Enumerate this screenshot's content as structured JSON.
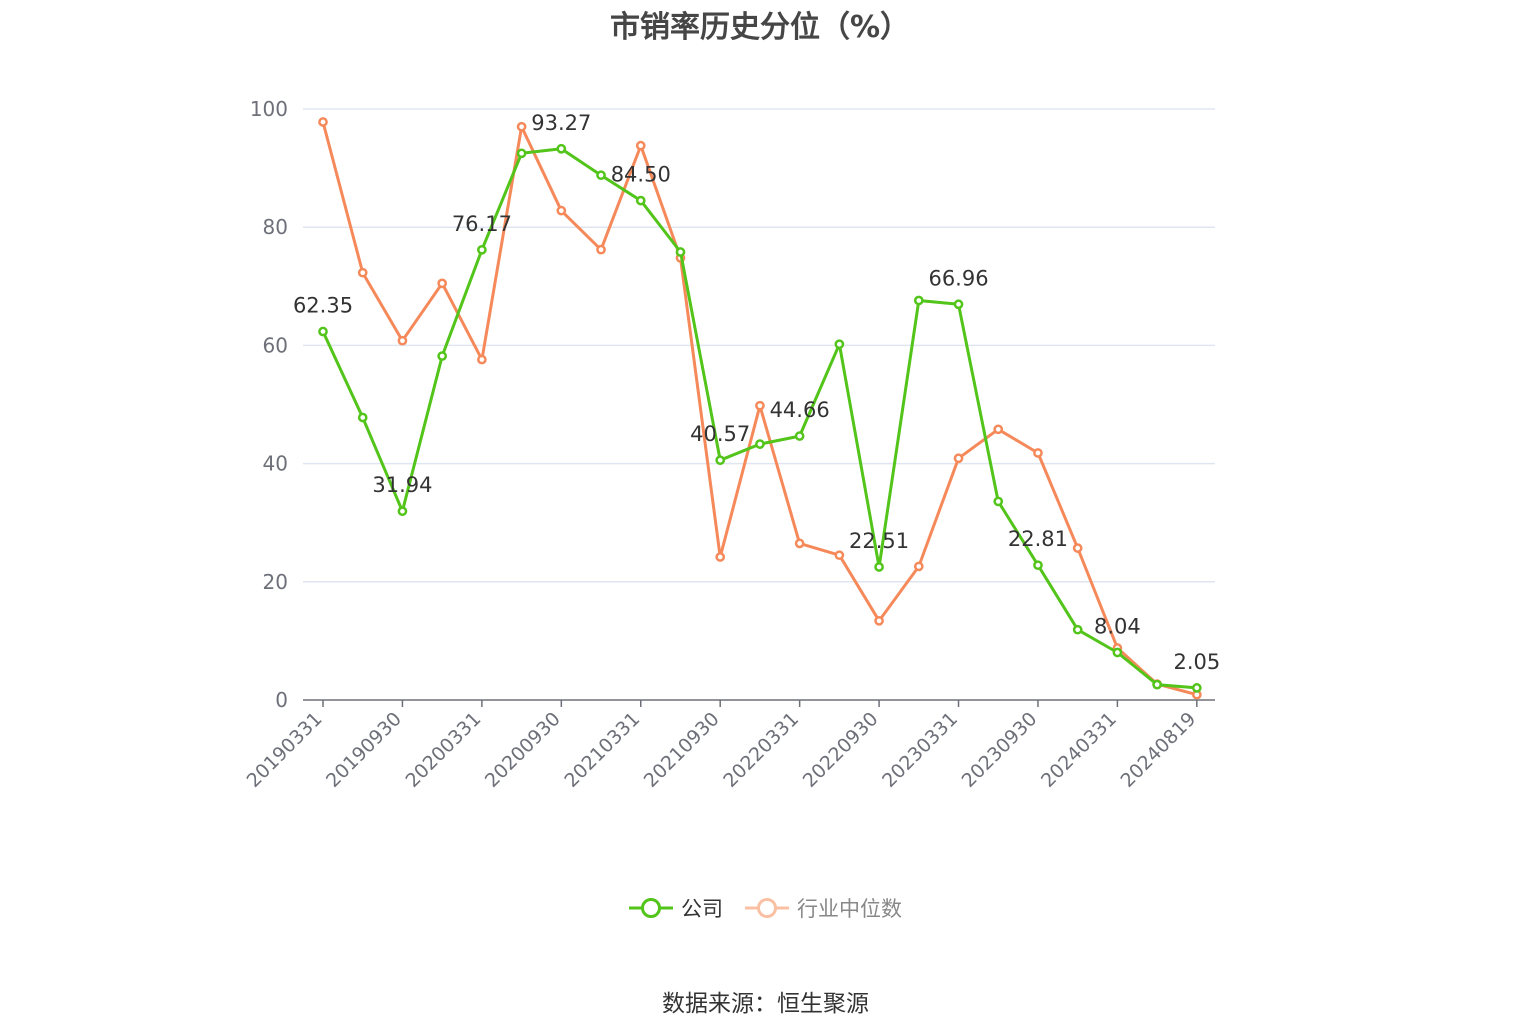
{
  "chart_data": {
    "type": "line",
    "title": "市销率历史分位（%）",
    "source": "数据来源：恒生聚源",
    "ylim": [
      0,
      100
    ],
    "yticks": [
      0,
      20,
      40,
      60,
      80,
      100
    ],
    "grid": true,
    "legend_position": "bottom-center",
    "x": [
      "20190331",
      "20190630",
      "20190930",
      "20191231",
      "20200331",
      "20200630",
      "20200930",
      "20201231",
      "20210331",
      "20210630",
      "20210930",
      "20211231",
      "20220331",
      "20220630",
      "20220930",
      "20221231",
      "20230331",
      "20230630",
      "20230930",
      "20231231",
      "20240331",
      "20240630",
      "20240819"
    ],
    "x_tick_labels": [
      "20190331",
      "20190930",
      "20200331",
      "20200930",
      "20210331",
      "20210930",
      "20220331",
      "20220930",
      "20230331",
      "20230930",
      "20240331",
      "20240819"
    ],
    "series": [
      {
        "name": "公司",
        "color": "#52c41a",
        "values": [
          62.35,
          47.8,
          31.94,
          58.2,
          76.17,
          92.5,
          93.27,
          88.8,
          84.5,
          75.8,
          40.57,
          43.3,
          44.66,
          60.2,
          22.51,
          67.6,
          66.96,
          33.6,
          22.81,
          11.9,
          8.04,
          2.6,
          2.05
        ],
        "labels": [
          "62.35",
          "",
          "31.94",
          "",
          "76.17",
          "",
          "93.27",
          "",
          "84.50",
          "",
          "40.57",
          "",
          "44.66",
          "",
          "22.51",
          "",
          "66.96",
          "",
          "22.81",
          "",
          "8.04",
          "",
          "2.05"
        ]
      },
      {
        "name": "行业中位数",
        "color": "#f5895a",
        "legend_color": "#f9c0a3",
        "values": [
          97.8,
          72.3,
          60.8,
          70.5,
          57.6,
          97.0,
          82.8,
          76.2,
          93.8,
          74.8,
          24.2,
          49.8,
          26.5,
          24.5,
          13.4,
          22.6,
          40.9,
          45.8,
          41.8,
          25.7,
          8.8,
          2.7,
          0.9
        ]
      }
    ]
  }
}
